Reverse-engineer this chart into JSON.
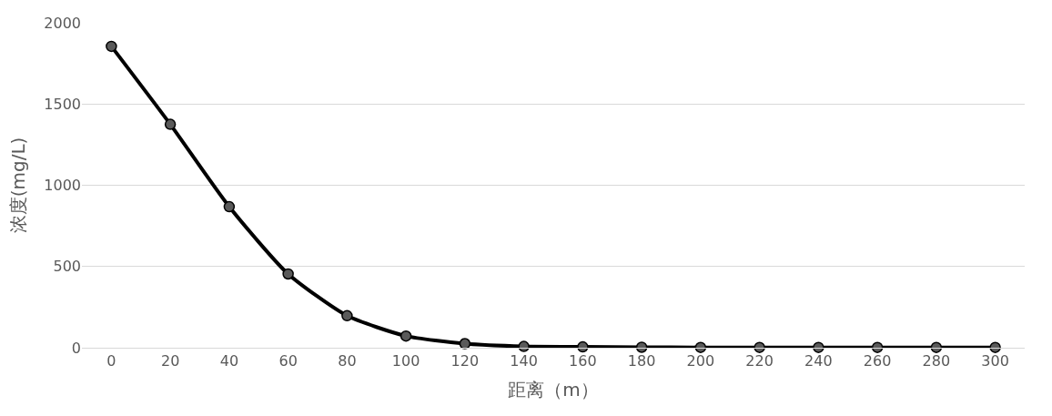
{
  "chart_data": {
    "type": "line",
    "xlabel": "距离（m）",
    "ylabel": "浓度(mg/L)",
    "categories": [
      "0",
      "20",
      "40",
      "60",
      "80",
      "100",
      "120",
      "140",
      "160",
      "180",
      "200",
      "220",
      "240",
      "260",
      "280",
      "300"
    ],
    "series": [
      {
        "color": "#000000",
        "values": [
          1855,
          1375,
          868,
          454,
          197,
          72,
          25,
          8,
          5,
          3,
          2,
          2,
          2,
          2,
          2,
          2
        ]
      }
    ],
    "ylim": [
      0,
      2000
    ],
    "yticks": [
      0,
      500,
      1000,
      1500,
      2000
    ],
    "grid": "y",
    "marker": "circle",
    "line_style": "solid",
    "legend": false
  }
}
